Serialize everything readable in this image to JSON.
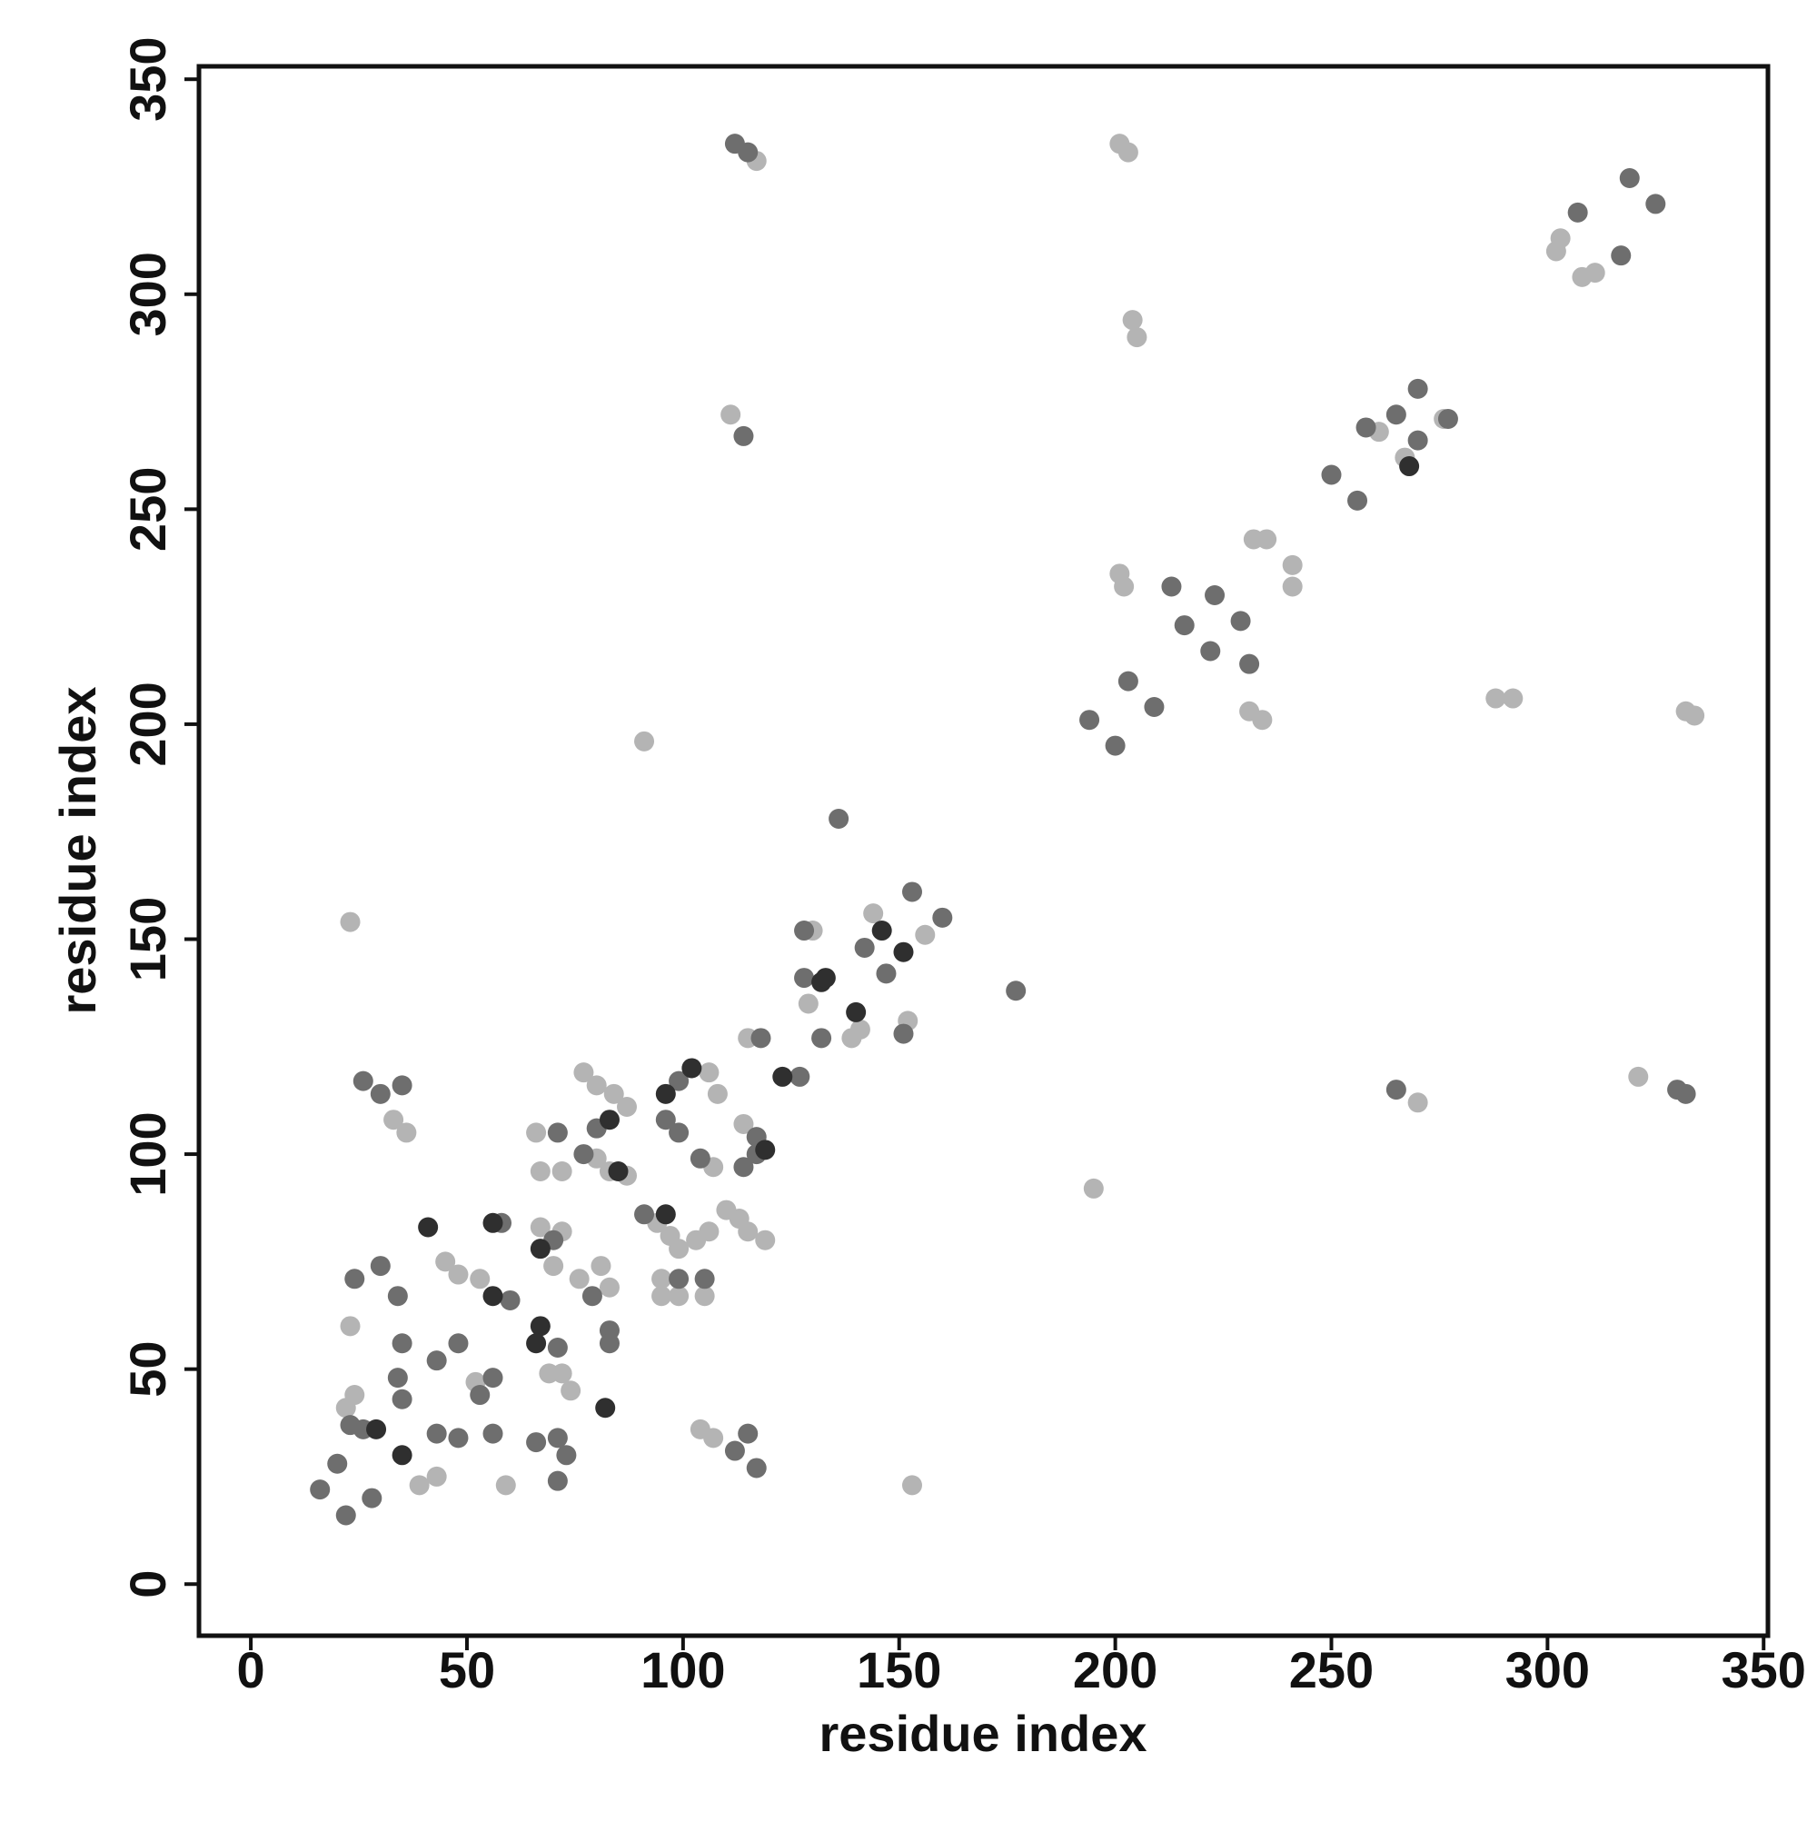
{
  "chart_data": {
    "type": "scatter",
    "x_label": "residue index",
    "y_label": "residue index",
    "xlim": [
      -12,
      351
    ],
    "ylim": [
      -12,
      353
    ],
    "xticks": [
      0,
      50,
      100,
      150,
      200,
      250,
      300,
      350
    ],
    "yticks": [
      0,
      50,
      100,
      150,
      200,
      250,
      300,
      350
    ],
    "grid": false,
    "series": [
      {
        "color": "#b4b4b4",
        "x": [
          23,
          91,
          153,
          195,
          270,
          288,
          292,
          332,
          334,
          321,
          201,
          202,
          232,
          235,
          241,
          241,
          231,
          234,
          201,
          203,
          204,
          205,
          117,
          111,
          261,
          276,
          267,
          302,
          303,
          308,
          311,
          22,
          24,
          23,
          33,
          36,
          45,
          48,
          43,
          39,
          59,
          52,
          53,
          66,
          67,
          72,
          67,
          72,
          69,
          72,
          74,
          70,
          76,
          81,
          83,
          77,
          80,
          84,
          87,
          80,
          83,
          87,
          94,
          97,
          99,
          95,
          95,
          99,
          105,
          107,
          106,
          108,
          103,
          106,
          110,
          113,
          115,
          119,
          114,
          104,
          107,
          115,
          130,
          129,
          141,
          139,
          144,
          152,
          156
        ],
        "values": [
          154,
          196,
          23,
          92,
          112,
          206,
          206,
          203,
          202,
          118,
          235,
          232,
          243,
          243,
          237,
          232,
          203,
          201,
          335,
          333,
          294,
          290,
          331,
          272,
          268,
          271,
          262,
          310,
          313,
          304,
          305,
          41,
          44,
          60,
          108,
          105,
          75,
          72,
          25,
          23,
          23,
          47,
          71,
          105,
          96,
          96,
          83,
          82,
          49,
          49,
          45,
          74,
          71,
          74,
          69,
          119,
          116,
          114,
          111,
          99,
          96,
          95,
          84,
          81,
          78,
          71,
          67,
          67,
          67,
          97,
          119,
          114,
          80,
          82,
          87,
          85,
          82,
          80,
          107,
          36,
          34,
          127,
          152,
          135,
          129,
          127,
          156,
          131,
          151
        ]
      },
      {
        "color": "#6e6e6e",
        "x": [
          136,
          177,
          265,
          330,
          332,
          194,
          200,
          203,
          209,
          213,
          216,
          222,
          223,
          229,
          231,
          112,
          115,
          114,
          250,
          256,
          258,
          265,
          270,
          277,
          270,
          307,
          319,
          325,
          317,
          16,
          22,
          20,
          28,
          23,
          26,
          35,
          34,
          43,
          24,
          30,
          34,
          35,
          26,
          30,
          35,
          43,
          48,
          53,
          56,
          48,
          56,
          58,
          60,
          71,
          70,
          71,
          66,
          71,
          71,
          73,
          79,
          83,
          83,
          77,
          80,
          91,
          99,
          105,
          99,
          96,
          99,
          104,
          117,
          114,
          117,
          112,
          115,
          117,
          118,
          127,
          128,
          128,
          132,
          142,
          147,
          153,
          151,
          160
        ],
        "values": [
          178,
          138,
          115,
          115,
          114,
          201,
          195,
          210,
          204,
          232,
          223,
          217,
          230,
          224,
          214,
          335,
          333,
          267,
          258,
          252,
          269,
          272,
          278,
          271,
          266,
          319,
          327,
          321,
          309,
          22,
          16,
          28,
          20,
          37,
          36,
          43,
          48,
          35,
          71,
          74,
          67,
          56,
          117,
          114,
          116,
          52,
          56,
          44,
          48,
          34,
          35,
          84,
          66,
          105,
          80,
          55,
          33,
          34,
          24,
          30,
          67,
          59,
          56,
          100,
          106,
          86,
          71,
          71,
          117,
          108,
          105,
          99,
          104,
          97,
          100,
          31,
          35,
          27,
          127,
          118,
          152,
          141,
          127,
          148,
          142,
          161,
          128,
          155
        ]
      },
      {
        "color": "#2f2f2f",
        "x": [
          29,
          35,
          41,
          56,
          56,
          67,
          67,
          66,
          82,
          85,
          83,
          96,
          96,
          102,
          119,
          123,
          132,
          133,
          140,
          146,
          151,
          268
        ],
        "values": [
          36,
          30,
          83,
          84,
          67,
          78,
          60,
          56,
          41,
          96,
          108,
          86,
          114,
          120,
          101,
          118,
          140,
          141,
          133,
          152,
          147,
          260
        ]
      }
    ]
  }
}
